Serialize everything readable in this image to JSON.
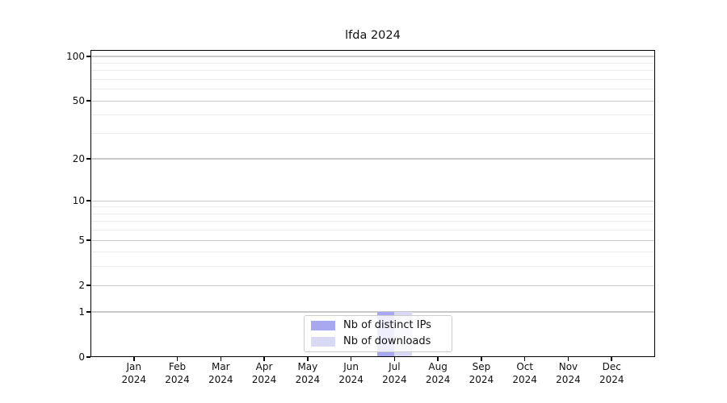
{
  "chart_data": {
    "type": "bar",
    "title": "lfda 2024",
    "categories": [
      "Jan 2024",
      "Feb 2024",
      "Mar 2024",
      "Apr 2024",
      "May 2024",
      "Jun 2024",
      "Jul 2024",
      "Aug 2024",
      "Sep 2024",
      "Oct 2024",
      "Nov 2024",
      "Dec 2024"
    ],
    "x_axis": {
      "months": [
        "Jan",
        "Feb",
        "Mar",
        "Apr",
        "May",
        "Jun",
        "Jul",
        "Aug",
        "Sep",
        "Oct",
        "Nov",
        "Dec"
      ],
      "year": "2024"
    },
    "y_axis": {
      "scale": "log1p",
      "labeled_ticks": [
        100,
        50,
        20,
        10,
        5,
        2,
        1,
        0
      ],
      "minor_ticks": [
        3,
        4,
        6,
        7,
        8,
        9,
        30,
        40,
        60,
        70,
        80,
        90
      ],
      "top_value": 110.5
    },
    "ylim": [
      0,
      110.5
    ],
    "series": [
      {
        "name": "Nb of distinct IPs",
        "color": "#a8a8f0",
        "values": [
          0,
          0,
          0,
          0,
          0,
          0,
          1,
          0,
          0,
          0,
          0,
          0
        ]
      },
      {
        "name": "Nb of downloads",
        "color": "#d9d9f6",
        "values": [
          0,
          0,
          0,
          0,
          0,
          0,
          1,
          0,
          0,
          0,
          0,
          0
        ]
      }
    ],
    "legend": {
      "location": "lower center",
      "entries": [
        "Nb of distinct IPs",
        "Nb of downloads"
      ]
    },
    "grid": {
      "major_color": "#c9c9c9",
      "minor_color": "#ececec"
    }
  }
}
